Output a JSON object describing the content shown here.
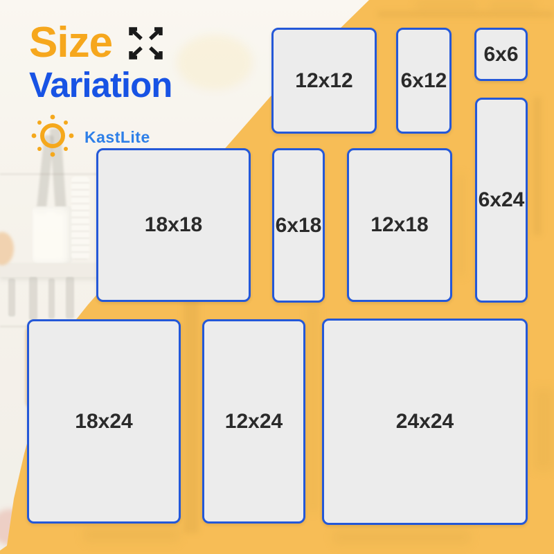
{
  "header": {
    "title_line1": "Size",
    "title_line2": "Variation",
    "brand": "KastLite"
  },
  "tiles": [
    {
      "label": "12x12"
    },
    {
      "label": "6x12"
    },
    {
      "label": "6x6"
    },
    {
      "label": "18x18"
    },
    {
      "label": "6x18"
    },
    {
      "label": "12x18"
    },
    {
      "label": "6x24"
    },
    {
      "label": "18x24"
    },
    {
      "label": "12x24"
    },
    {
      "label": "24x24"
    }
  ],
  "colors": {
    "background_yellow": "#F4A71F",
    "title_orange": "#F6A71D",
    "title_blue": "#1853E4",
    "brand_blue": "#2E7FE8",
    "tile_fill": "#ECECEC",
    "tile_border": "#2458D8",
    "tile_text": "#2A2A2A",
    "arrow_icon": "#1A1A1A"
  }
}
